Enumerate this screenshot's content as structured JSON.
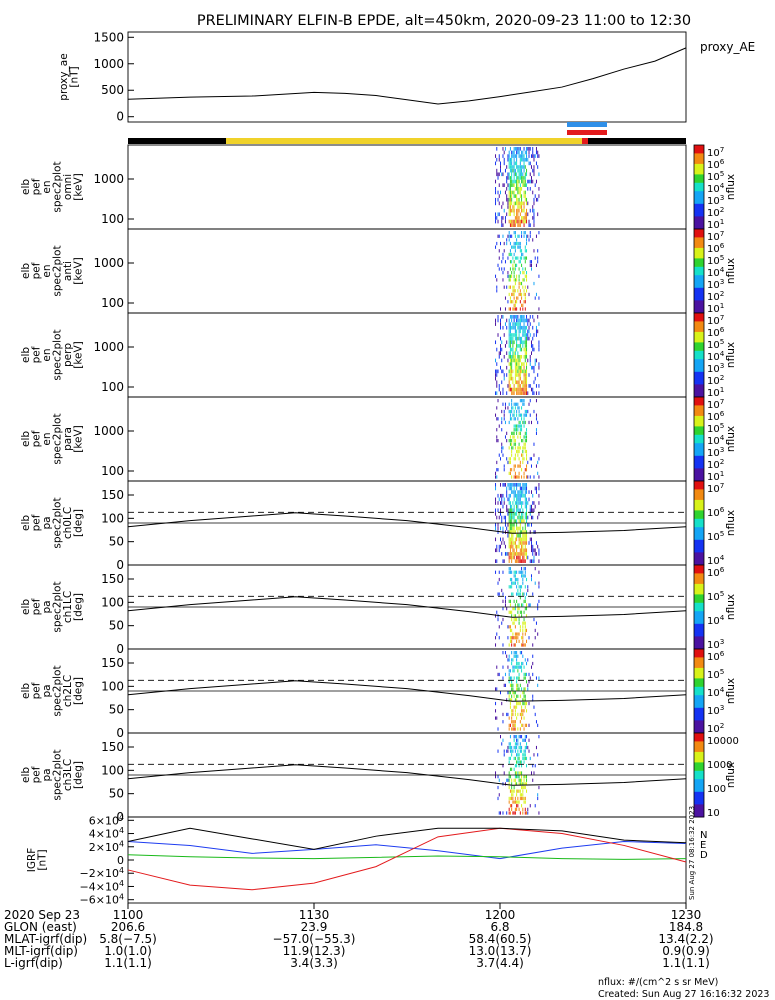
{
  "title": "PRELIMINARY ELFIN-B EPDE, alt=450km, 2020-09-23 11:00 to 12:30",
  "colors": {
    "sci_zone_blue": "#2f8fe8",
    "sci_zone_red": "#e31a1c",
    "fgm_yellow": "#f0d22a",
    "geo_N": "#1e3cf0",
    "geo_E": "#19b919",
    "geo_D": "#e31a1c"
  },
  "chart_data": [
    {
      "type": "line",
      "name": "proxy_ae",
      "ylabel": [
        "proxy_ae",
        "[nT]"
      ],
      "legend": "proxy_AE",
      "ylim": [
        -100,
        1600
      ],
      "yticks": [
        "1500",
        "1000",
        "500",
        "0"
      ],
      "ytick_values": [
        1500,
        1000,
        500,
        0
      ],
      "x_minutes": [
        0,
        10,
        20,
        30,
        35,
        40,
        45,
        50,
        55,
        60,
        65,
        70,
        75,
        80,
        85,
        90
      ],
      "values": [
        330,
        370,
        390,
        460,
        440,
        400,
        320,
        240,
        300,
        380,
        470,
        560,
        720,
        900,
        1050,
        1300
      ]
    },
    {
      "type": "heatmap",
      "name": "elb_pef_en_spec2plot_omni",
      "ylabel": [
        "elb",
        "pef",
        "en",
        "spec2plot",
        "omni",
        "[keV]"
      ],
      "yticks": [
        "1000",
        "100"
      ],
      "colorbar_ticks": [
        "10^7",
        "10^6",
        "10^5",
        "10^4",
        "10^3",
        "10^2",
        "10^1"
      ],
      "colorbar_label": "nflux"
    },
    {
      "type": "heatmap",
      "name": "elb_pef_en_spec2plot_anti",
      "ylabel": [
        "elb",
        "pef",
        "en",
        "spec2plot",
        "anti",
        "[keV]"
      ],
      "yticks": [
        "1000",
        "100"
      ],
      "colorbar_ticks": [
        "10^7",
        "10^6",
        "10^5",
        "10^4",
        "10^3",
        "10^2",
        "10^1"
      ],
      "colorbar_label": "nflux"
    },
    {
      "type": "heatmap",
      "name": "elb_pef_en_spec2plot_perp",
      "ylabel": [
        "elb",
        "pef",
        "en",
        "spec2plot",
        "perp",
        "[keV]"
      ],
      "yticks": [
        "1000",
        "100"
      ],
      "colorbar_ticks": [
        "10^7",
        "10^6",
        "10^5",
        "10^4",
        "10^3",
        "10^2",
        "10^1"
      ],
      "colorbar_label": "nflux"
    },
    {
      "type": "heatmap",
      "name": "elb_pef_en_spec2plot_para",
      "ylabel": [
        "elb",
        "pef",
        "en",
        "spec2plot",
        "para",
        "[keV]"
      ],
      "yticks": [
        "1000",
        "100"
      ],
      "colorbar_ticks": [
        "10^7",
        "10^6",
        "10^5",
        "10^4",
        "10^3",
        "10^2",
        "10^1"
      ],
      "colorbar_label": "nflux"
    },
    {
      "type": "heatmap",
      "name": "elb_pef_pa_spec2plot_ch0LC",
      "ylabel": [
        "elb",
        "pef",
        "pa",
        "spec2plot",
        "ch0LC",
        "[deg]"
      ],
      "yticks": [
        "150",
        "100",
        "50",
        "0"
      ],
      "ytick_values": [
        150,
        100,
        50,
        0
      ],
      "ylim": [
        0,
        180
      ],
      "colorbar_ticks": [
        "10^7",
        "10^6",
        "10^5",
        "10^4"
      ],
      "colorbar_label": "nflux"
    },
    {
      "type": "heatmap",
      "name": "elb_pef_pa_spec2plot_ch1LC",
      "ylabel": [
        "elb",
        "pef",
        "pa",
        "spec2plot",
        "ch1LC",
        "[deg]"
      ],
      "yticks": [
        "150",
        "100",
        "50",
        "0"
      ],
      "ytick_values": [
        150,
        100,
        50,
        0
      ],
      "ylim": [
        0,
        180
      ],
      "colorbar_ticks": [
        "10^6",
        "10^5",
        "10^4",
        "10^3"
      ],
      "colorbar_label": "nflux"
    },
    {
      "type": "heatmap",
      "name": "elb_pef_pa_spec2plot_ch2LC",
      "ylabel": [
        "elb",
        "pef",
        "pa",
        "spec2plot",
        "ch2LC",
        "[deg]"
      ],
      "yticks": [
        "150",
        "100",
        "50",
        "0"
      ],
      "ytick_values": [
        150,
        100,
        50,
        0
      ],
      "ylim": [
        0,
        180
      ],
      "colorbar_ticks": [
        "10^6",
        "10^5",
        "10^4",
        "10^3",
        "10^2"
      ],
      "colorbar_label": "nflux"
    },
    {
      "type": "heatmap",
      "name": "elb_pef_pa_spec2plot_ch3LC",
      "ylabel": [
        "elb",
        "pef",
        "pa",
        "spec2plot",
        "ch3LC",
        "[deg]"
      ],
      "yticks": [
        "150",
        "100",
        "50",
        "0"
      ],
      "ytick_values": [
        150,
        100,
        50,
        0
      ],
      "ylim": [
        0,
        180
      ],
      "colorbar_ticks": [
        "10000",
        "1000",
        "100",
        "10"
      ],
      "colorbar_label": "nflux"
    },
    {
      "type": "line",
      "name": "IGRF",
      "ylabel": [
        "IGRF",
        "[nT]"
      ],
      "yticks": [
        "6×10^4",
        "4×10^4",
        "2×10^4",
        "0",
        "−2×10^4",
        "−4×10^4",
        "−6×10^4"
      ],
      "ytick_values": [
        60000,
        40000,
        20000,
        0,
        -20000,
        -40000,
        -60000
      ],
      "ylim": [
        -65000,
        65000
      ],
      "legend": [
        "N",
        "E",
        "D"
      ],
      "x_minutes": [
        0,
        10,
        20,
        30,
        40,
        50,
        60,
        70,
        80,
        90
      ],
      "series": [
        {
          "name": "N",
          "values": [
            28000,
            22000,
            10000,
            16000,
            23000,
            14000,
            2000,
            18000,
            28000,
            25000
          ]
        },
        {
          "name": "E",
          "values": [
            8000,
            5000,
            3000,
            2000,
            4000,
            6000,
            5000,
            2000,
            1000,
            2000
          ]
        },
        {
          "name": "D",
          "values": [
            -15000,
            -38000,
            -45000,
            -35000,
            -10000,
            35000,
            48000,
            40000,
            22000,
            -3000
          ]
        },
        {
          "name": "total",
          "values": [
            28000,
            48000,
            32000,
            16000,
            36000,
            48000,
            48000,
            44000,
            30000,
            26000
          ]
        }
      ]
    }
  ],
  "timestamp_side": "Sun Aug 27 08:16:32 2023",
  "ephemeris": {
    "rows": [
      {
        "label": "2020 Sep 23",
        "values": [
          "1100",
          "1130",
          "1200",
          "1230"
        ]
      },
      {
        "label": "GLON (east)",
        "values": [
          "206.6",
          "23.9",
          "6.8",
          "184.8"
        ]
      },
      {
        "label": "MLAT-igrf(dip)",
        "values": [
          "5.8(−7.5)",
          "−57.0(−55.3)",
          "58.4(60.5)",
          "13.4(2.2)"
        ]
      },
      {
        "label": "MLT-igrf(dip)",
        "values": [
          "1.0(1.0)",
          "11.9(12.3)",
          "13.0(13.7)",
          "0.9(0.9)"
        ]
      },
      {
        "label": "L-igrf(dip)",
        "values": [
          "1.1(1.1)",
          "3.4(3.3)",
          "3.7(4.4)",
          "1.1(1.1)"
        ]
      }
    ]
  },
  "footer": {
    "unit_note": "nflux: #/(cm^2 s sr MeV)",
    "created": "Created: Sun Aug 27 16:16:32 2023"
  }
}
